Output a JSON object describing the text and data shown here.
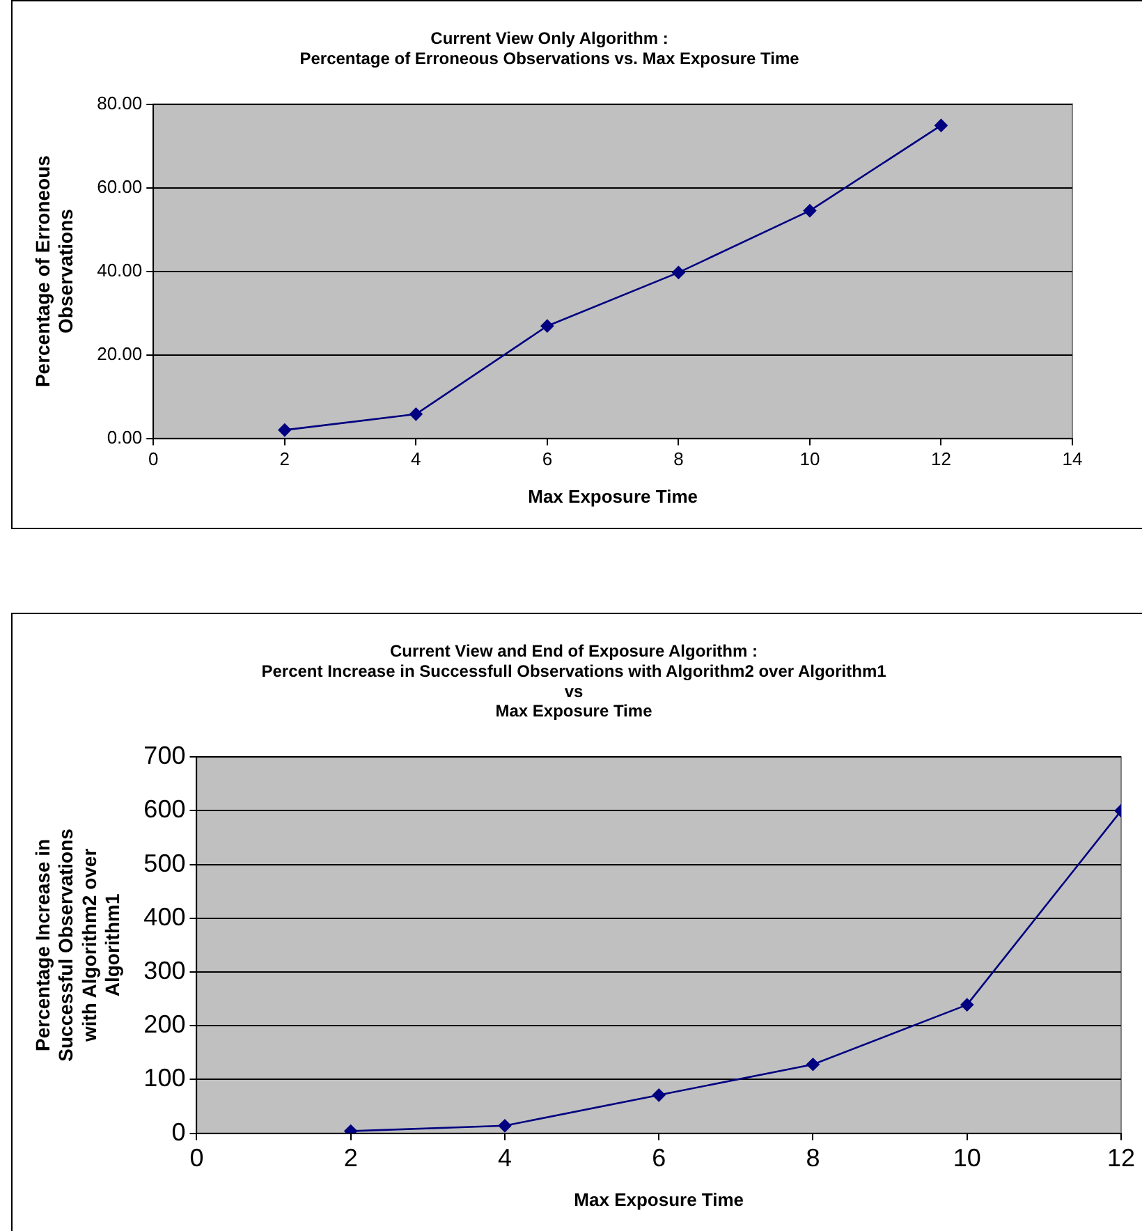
{
  "chart_data": [
    {
      "type": "line",
      "title": "Current View Only Algorithm :\nPercentage of Erroneous Observations vs. Max Exposure Time",
      "xlabel": "Max Exposure Time",
      "ylabel": "Percentage of Erroneous\nObservations",
      "x": [
        2,
        4,
        6,
        8,
        10,
        12
      ],
      "series": [
        {
          "color": "#000080",
          "values": [
            2.0,
            5.8,
            26.9,
            39.7,
            54.5,
            74.9
          ]
        }
      ],
      "xlim": [
        0,
        14
      ],
      "xticks": [
        0,
        2,
        4,
        6,
        8,
        10,
        12,
        14
      ],
      "ylim": [
        0,
        80
      ],
      "yticks": [
        {
          "value": 0,
          "label": "0.00"
        },
        {
          "value": 20,
          "label": "20.00"
        },
        {
          "value": 40,
          "label": "40.00"
        },
        {
          "value": 60,
          "label": "60.00"
        },
        {
          "value": 80,
          "label": "80.00"
        }
      ],
      "grid": "y",
      "legend": false,
      "marker": "diamond",
      "line_style": "solid"
    },
    {
      "type": "line",
      "title": "Current View and End of Exposure Algorithm :\nPercent Increase in Successfull Observations with Algorithm2 over Algorithm1\nvs\nMax Exposure Time",
      "xlabel": "Max Exposure Time",
      "ylabel": "Percentage Increase in\nSuccessful Observations\nwith Algorithm2 over\nAlgorithm1",
      "x": [
        2,
        4,
        6,
        8,
        10,
        12
      ],
      "series": [
        {
          "color": "#000080",
          "values": [
            4,
            14,
            71,
            128,
            239,
            600
          ]
        }
      ],
      "xlim": [
        0,
        12
      ],
      "xticks": [
        0,
        2,
        4,
        6,
        8,
        10,
        12
      ],
      "ylim": [
        0,
        700
      ],
      "yticks": [
        0,
        100,
        200,
        300,
        400,
        500,
        600,
        700
      ],
      "grid": "y",
      "legend": false,
      "marker": "diamond",
      "line_style": "solid"
    }
  ]
}
